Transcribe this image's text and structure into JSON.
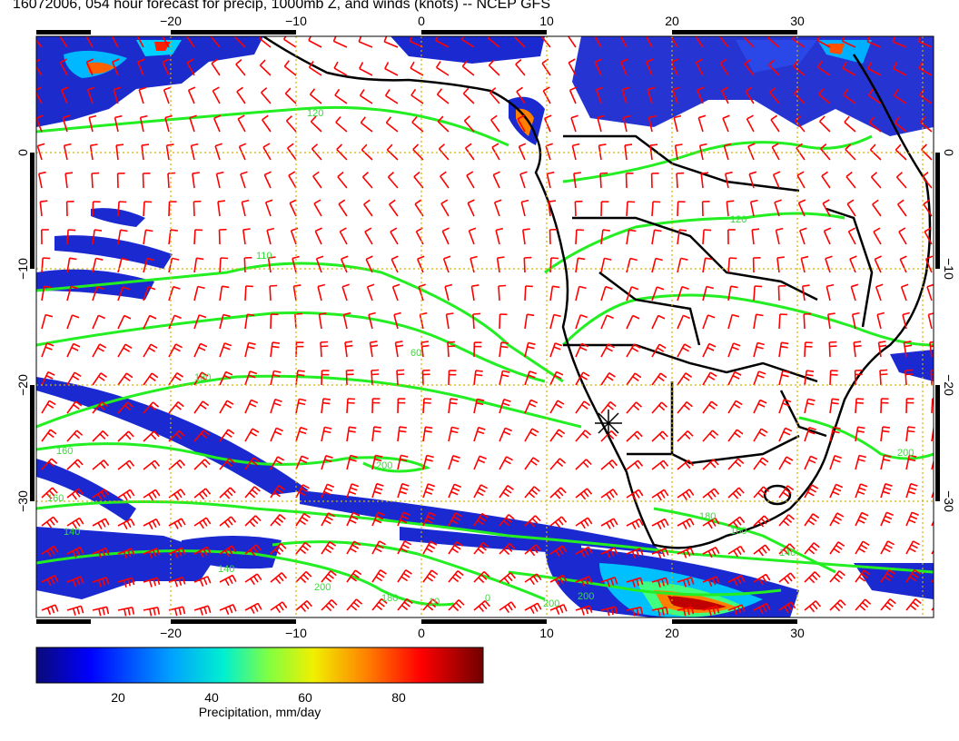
{
  "title": "16072006, 054 hour forecast for precip, 1000mb Z, and winds (knots) -- NCEP GFS",
  "map": {
    "lon_ticks_top": [
      "−20",
      "−10",
      "0",
      "10",
      "20",
      "30"
    ],
    "lon_ticks_bottom": [
      "−20",
      "−10",
      "0",
      "10",
      "20",
      "30"
    ],
    "lat_ticks_left": [
      "0",
      "−10",
      "−20",
      "−30"
    ],
    "lat_ticks_right": [
      "0",
      "−10",
      "−20",
      "−30"
    ],
    "contour_labels": [
      "120",
      "120",
      "110",
      "60",
      "180",
      "160",
      "200",
      "140",
      "200",
      "160",
      "140",
      "200",
      "180",
      "10",
      "0",
      "200",
      "180",
      "160",
      "140",
      "200"
    ],
    "colors": {
      "wind_barbs": "#ff0000",
      "contours": "#22ee22",
      "coastline": "#000000",
      "grid": "#d4b000"
    }
  },
  "colorbar": {
    "ticks": [
      "20",
      "40",
      "60",
      "80"
    ],
    "label": "Precipitation, mm/day",
    "colors": [
      "#00007f",
      "#0000ff",
      "#00bfff",
      "#00ffbf",
      "#7fff00",
      "#ffff00",
      "#ff8000",
      "#ff0000",
      "#7f0000"
    ]
  }
}
